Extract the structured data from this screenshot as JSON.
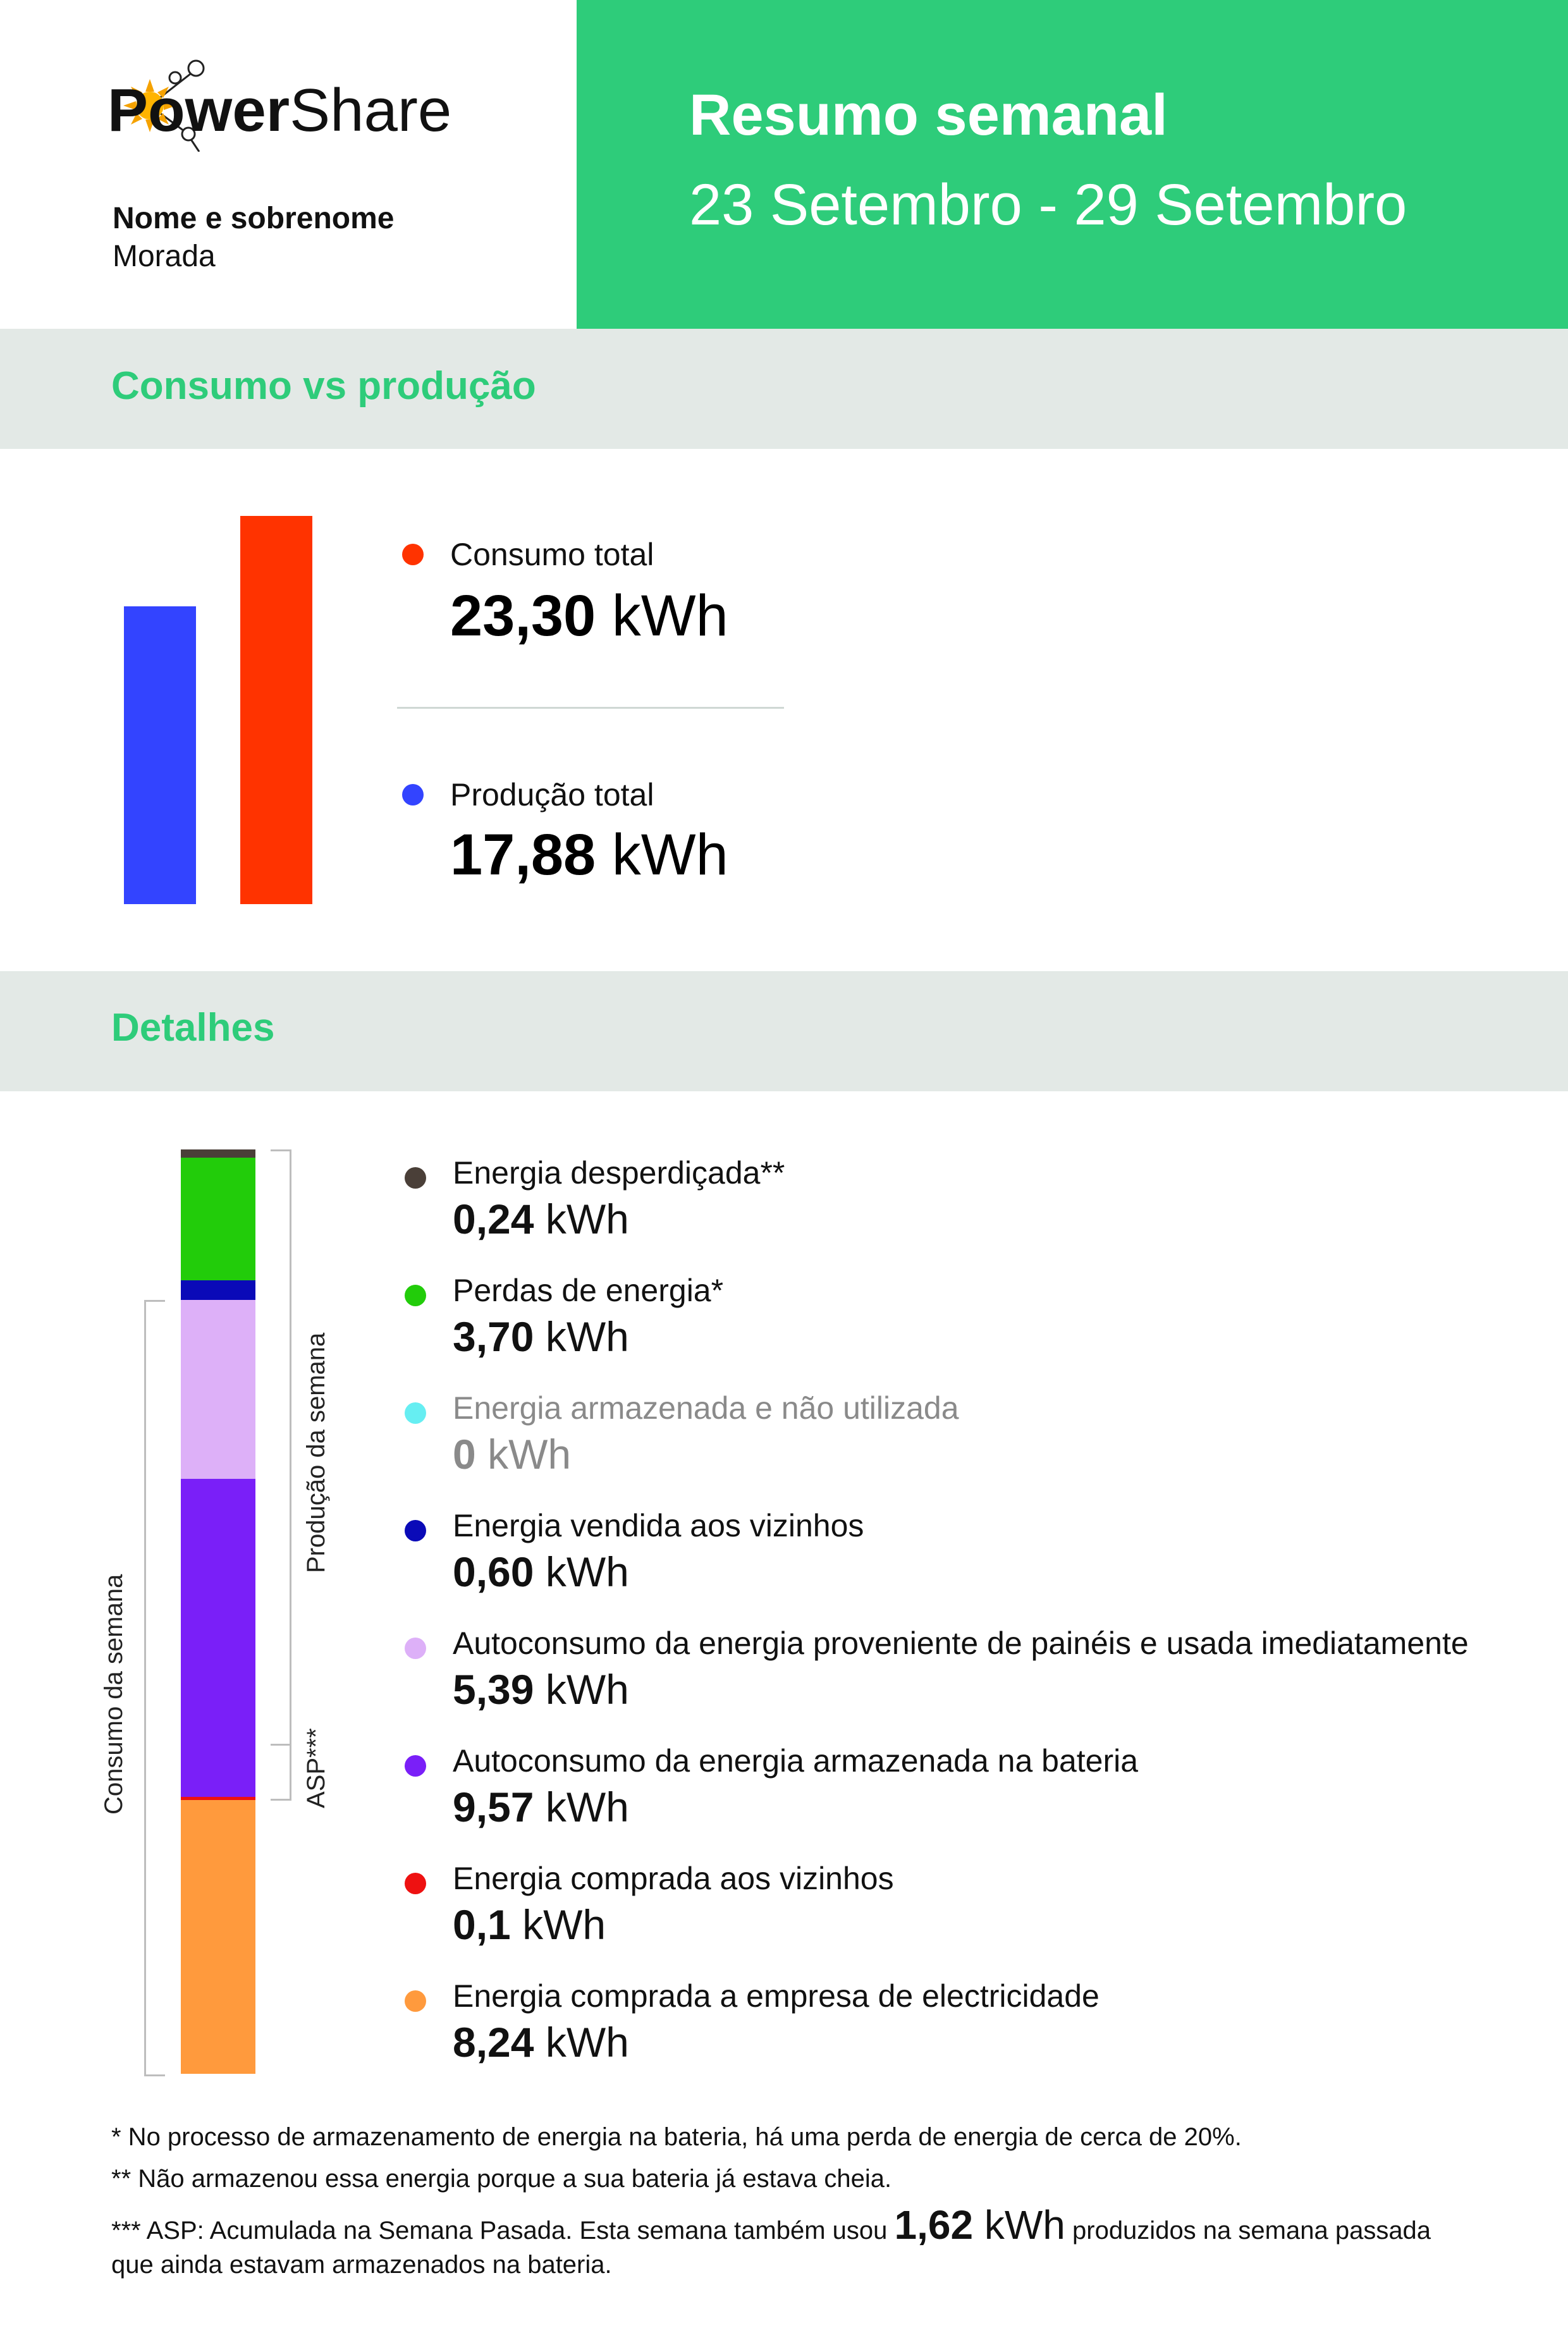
{
  "brand": {
    "name_bold": "Power",
    "name_light": "Share"
  },
  "customer": {
    "name": "Nome e sobrenome",
    "address": "Morada"
  },
  "report": {
    "title": "Resumo semanal",
    "period": "23 Setembro - 29 Setembro"
  },
  "colors": {
    "accent_green": "#2ecc7a",
    "band_gray": "#e3e9e6",
    "consumption_red": "#ff3300",
    "production_blue": "#3344ff"
  },
  "summary": {
    "heading": "Consumo vs produção",
    "consumption": {
      "label": "Consumo total",
      "value": "23,30",
      "unit": "kWh",
      "amount": 23.3,
      "color": "#ff3300"
    },
    "production": {
      "label": "Produção total",
      "value": "17,88",
      "unit": "kWh",
      "amount": 17.88,
      "color": "#3344ff"
    }
  },
  "details": {
    "heading": "Detalhes",
    "consumption_axis_label": "Consumo da semana",
    "production_axis_label": "Produção da semana",
    "asp_label": "ASP***",
    "items": [
      {
        "label": "Energia desperdiçada**",
        "value": "0,24",
        "unit": "kWh",
        "amount": 0.24,
        "color": "#4a3f38",
        "muted": false
      },
      {
        "label": "Perdas de energia*",
        "value": "3,70",
        "unit": "kWh",
        "amount": 3.7,
        "color": "#22cc0a",
        "muted": false
      },
      {
        "label": "Energia armazenada e não utilizada",
        "value": "0",
        "unit": "kWh",
        "amount": 0,
        "color": "#66eef2",
        "muted": true
      },
      {
        "label": "Energia vendida aos vizinhos",
        "value": "0,60",
        "unit": "kWh",
        "amount": 0.6,
        "color": "#0a0ab8",
        "muted": false
      },
      {
        "label": "Autoconsumo da energia proveniente de painéis e usada imediatamente",
        "value": "5,39",
        "unit": "kWh",
        "amount": 5.39,
        "color": "#ddb0f8",
        "muted": false
      },
      {
        "label": "Autoconsumo da energia armazenada na bateria",
        "value": "9,57",
        "unit": "kWh",
        "amount": 9.57,
        "color": "#7a1ff8",
        "muted": false
      },
      {
        "label": "Energia comprada aos vizinhos",
        "value": "0,1",
        "unit": "kWh",
        "amount": 0.1,
        "color": "#ee1111",
        "muted": false
      },
      {
        "label": "Energia comprada a empresa de electricidade",
        "value": "8,24",
        "unit": "kWh",
        "amount": 8.24,
        "color": "#ff9a3d",
        "muted": false
      }
    ]
  },
  "footnotes": {
    "note1": "* No processo de armazenamento de energia na bateria, há uma perda de energia de cerca de 20%.",
    "note2": "** Não armazenou essa energia porque a sua bateria já estava cheia.",
    "note3_prefix": "*** ASP: Acumulada na Semana Pasada. Esta semana também usou",
    "note3_value": "1,62",
    "note3_unit": "kWh",
    "note3_suffix": "produzidos na semana passada",
    "note3_line2": "que ainda estavam armazenados na bateria."
  }
}
